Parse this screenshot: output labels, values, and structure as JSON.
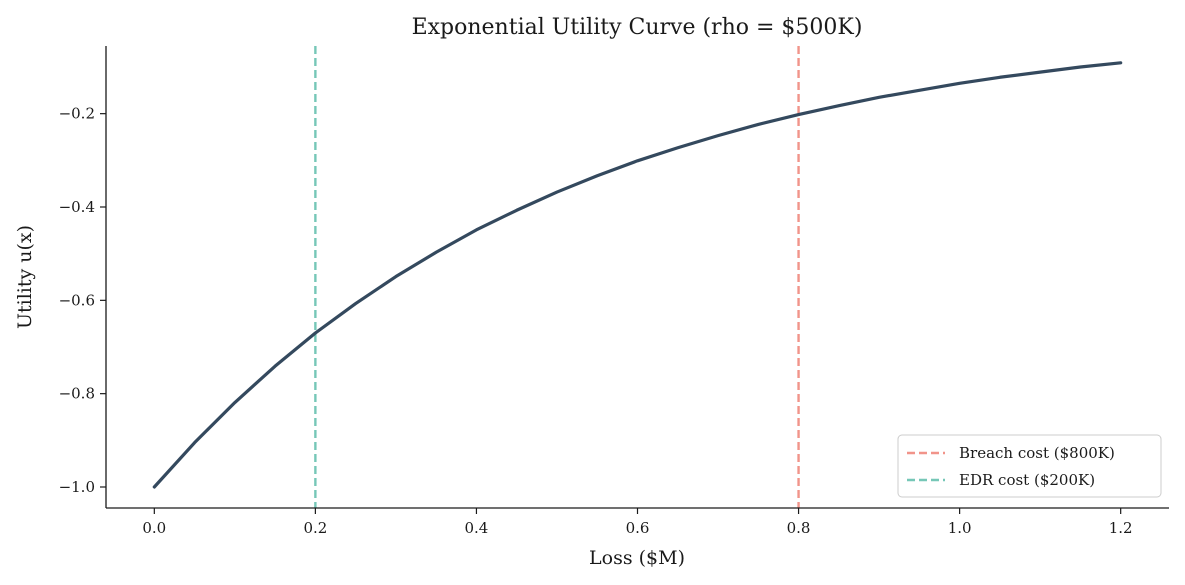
{
  "chart_data": {
    "type": "line",
    "title": "Exponential Utility Curve (rho = $500K)",
    "xlabel": "Loss ($M)",
    "ylabel": "Utility  u(x)",
    "xlim": [
      -0.06,
      1.26
    ],
    "ylim": [
      -1.045,
      -0.055
    ],
    "x_ticks": [
      0.0,
      0.2,
      0.4,
      0.6,
      0.8,
      1.0,
      1.2
    ],
    "x_tick_labels": [
      "0.0",
      "0.2",
      "0.4",
      "0.6",
      "0.8",
      "1.0",
      "1.2"
    ],
    "y_ticks": [
      -1.0,
      -0.8,
      -0.6,
      -0.4,
      -0.2
    ],
    "y_tick_labels": [
      "−1.0",
      "−0.8",
      "−0.6",
      "−0.4",
      "−0.2"
    ],
    "grid": false,
    "legend_position": "bottom-right",
    "series": [
      {
        "color": "#34495e",
        "x": [
          0.0,
          0.05,
          0.1,
          0.15,
          0.2,
          0.25,
          0.3,
          0.35,
          0.4,
          0.45,
          0.5,
          0.55,
          0.6,
          0.65,
          0.7,
          0.75,
          0.8,
          0.85,
          0.9,
          0.95,
          1.0,
          1.05,
          1.1,
          1.15,
          1.2
        ],
        "y": [
          -1.0,
          -0.905,
          -0.819,
          -0.741,
          -0.67,
          -0.607,
          -0.549,
          -0.497,
          -0.449,
          -0.407,
          -0.368,
          -0.333,
          -0.301,
          -0.273,
          -0.247,
          -0.223,
          -0.202,
          -0.183,
          -0.165,
          -0.15,
          -0.135,
          -0.122,
          -0.111,
          -0.1,
          -0.091
        ]
      }
    ],
    "reference_lines": [
      {
        "name": "Breach cost ($800K)",
        "x": 0.8,
        "color": "#f1948a"
      },
      {
        "name": "EDR cost ($200K)",
        "x": 0.2,
        "color": "#76c7b7"
      }
    ]
  }
}
